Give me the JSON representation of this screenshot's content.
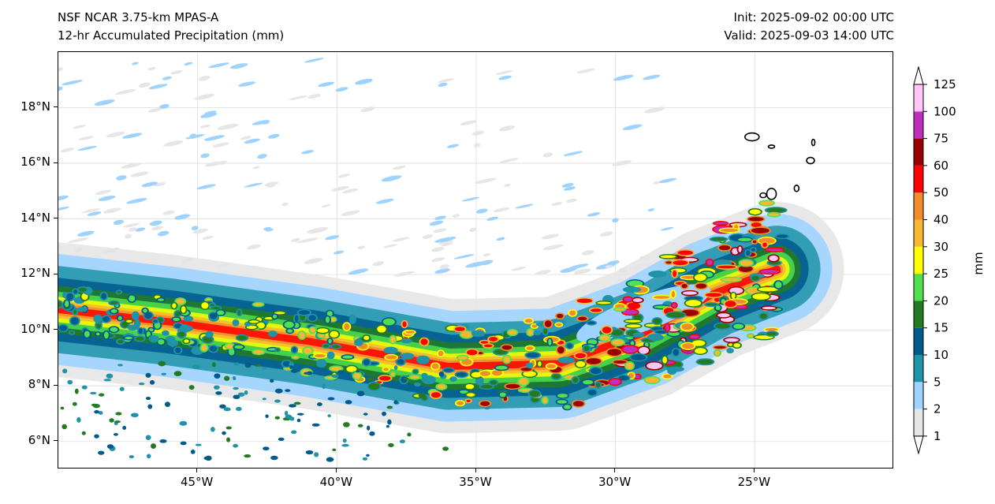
{
  "header": {
    "model": "NSF NCAR 3.75-km MPAS-A",
    "field": "12-hr Accumulated Precipitation (mm)",
    "init": "Init: 2025-09-02 00:00 UTC",
    "valid": "Valid: 2025-09-03 14:00 UTC"
  },
  "map": {
    "lon_range": [
      -50,
      -20
    ],
    "lat_range": [
      5,
      20
    ],
    "lon_ticks": [
      {
        "value": -45,
        "label": "45°W"
      },
      {
        "value": -40,
        "label": "40°W"
      },
      {
        "value": -35,
        "label": "35°W"
      },
      {
        "value": -30,
        "label": "30°W"
      },
      {
        "value": -25,
        "label": "25°W"
      }
    ],
    "lat_ticks": [
      {
        "value": 6,
        "label": "6°N"
      },
      {
        "value": 8,
        "label": "8°N"
      },
      {
        "value": 10,
        "label": "10°N"
      },
      {
        "value": 12,
        "label": "12°N"
      },
      {
        "value": 14,
        "label": "14°N"
      },
      {
        "value": 16,
        "label": "16°N"
      },
      {
        "value": 18,
        "label": "18°N"
      }
    ]
  },
  "colorbar": {
    "unit": "mm",
    "levels": [
      "1",
      "2",
      "5",
      "10",
      "15",
      "20",
      "25",
      "30",
      "40",
      "50",
      "60",
      "75",
      "100",
      "125"
    ],
    "colors": [
      "#e6e6e6",
      "#9fd3ff",
      "#1f93a8",
      "#005a8c",
      "#237a23",
      "#4fe04f",
      "#ffff00",
      "#f7b733",
      "#f08d2a",
      "#ff0000",
      "#9a0000",
      "#be2fbe",
      "#ffc6f7"
    ]
  }
}
